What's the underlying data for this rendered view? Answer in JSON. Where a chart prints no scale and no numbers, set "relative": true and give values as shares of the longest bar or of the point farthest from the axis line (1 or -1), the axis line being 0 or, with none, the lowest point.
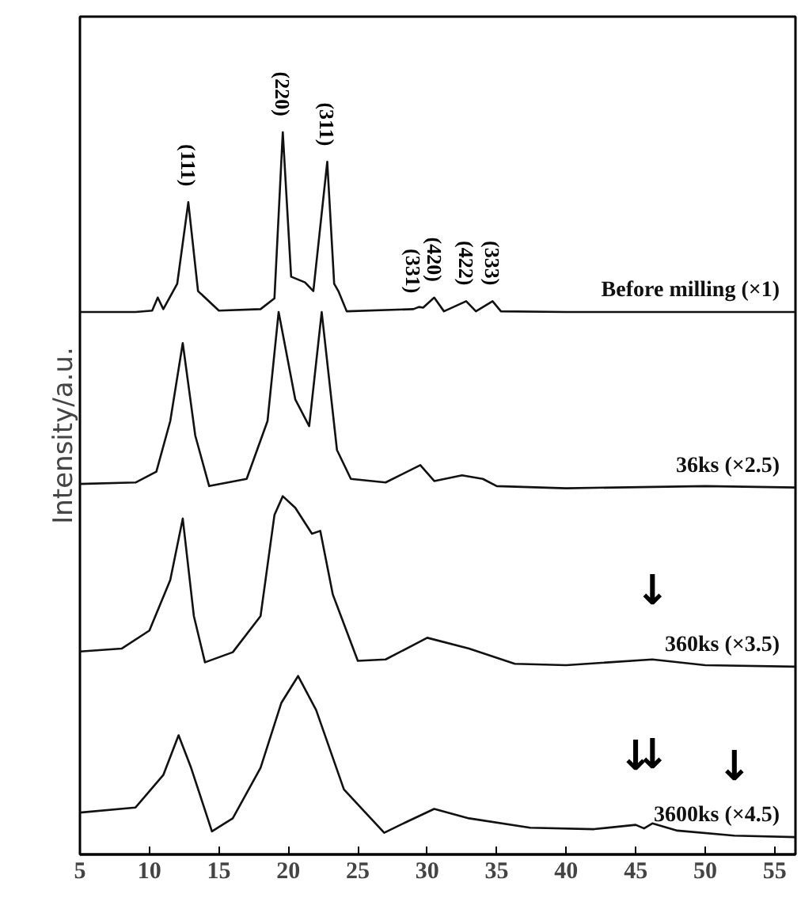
{
  "chart_data": {
    "type": "line",
    "relative": true,
    "ylabel": "Intensity/a.u.",
    "xlim": [
      5,
      56.5
    ],
    "xticks": [
      5,
      10,
      15,
      20,
      25,
      30,
      35,
      40,
      45,
      50,
      55
    ],
    "tick_labels": "x",
    "grid": false,
    "marker": "none",
    "line_style": "solid",
    "series": [
      {
        "name": "Before milling (×1)",
        "color": "#111111",
        "x": [
          5,
          9,
          10.2,
          10.6,
          11,
          12,
          12.8,
          13.5,
          15,
          18,
          19,
          19.6,
          20.2,
          21.2,
          21.8,
          22.8,
          23.3,
          23.6,
          24.2,
          29,
          29.4,
          29.7,
          30.5,
          31.2,
          32.8,
          33.5,
          34.7,
          35.3,
          40,
          56.5
        ],
        "values": [
          0.751,
          0.751,
          0.753,
          0.771,
          0.755,
          0.79,
          0.903,
          0.78,
          0.753,
          0.755,
          0.77,
          1.0,
          0.8,
          0.792,
          0.78,
          0.959,
          0.79,
          0.78,
          0.752,
          0.755,
          0.758,
          0.757,
          0.771,
          0.752,
          0.766,
          0.752,
          0.766,
          0.752,
          0.751,
          0.751
        ]
      },
      {
        "name": "36ks (×2.5)",
        "color": "#111111",
        "x": [
          5,
          9,
          10.5,
          11.5,
          12.4,
          13.3,
          14.3,
          17,
          18.5,
          19.3,
          20.5,
          21.5,
          22.4,
          23.5,
          24.5,
          27,
          29.5,
          30.5,
          32.5,
          34,
          35,
          40,
          50,
          56.5
        ],
        "values": [
          0.513,
          0.515,
          0.53,
          0.6,
          0.708,
          0.58,
          0.51,
          0.52,
          0.6,
          0.751,
          0.63,
          0.593,
          0.751,
          0.56,
          0.52,
          0.515,
          0.539,
          0.517,
          0.525,
          0.52,
          0.51,
          0.507,
          0.51,
          0.508
        ]
      },
      {
        "name": "360ks (×3.5)",
        "color": "#111111",
        "x": [
          5,
          8,
          10,
          11.5,
          12.4,
          13.2,
          14,
          16,
          18,
          19,
          19.6,
          20.5,
          21.7,
          22.3,
          23.2,
          25,
          27,
          30,
          33,
          36.3,
          40,
          46.2,
          50,
          56.5
        ],
        "values": [
          0.281,
          0.285,
          0.31,
          0.38,
          0.465,
          0.33,
          0.266,
          0.28,
          0.33,
          0.47,
          0.496,
          0.48,
          0.444,
          0.448,
          0.36,
          0.268,
          0.27,
          0.3,
          0.285,
          0.264,
          0.262,
          0.27,
          0.262,
          0.26
        ]
      },
      {
        "name": "3600ks (×4.5)",
        "color": "#111111",
        "x": [
          5,
          9,
          11,
          12.1,
          13,
          14.5,
          16,
          18,
          19.5,
          20.7,
          22,
          24,
          26.9,
          28.5,
          30.5,
          33,
          37.4,
          42,
          45,
          45.6,
          46.2,
          48,
          52.1,
          56.5
        ],
        "values": [
          0.058,
          0.065,
          0.11,
          0.165,
          0.12,
          0.032,
          0.05,
          0.12,
          0.21,
          0.247,
          0.2,
          0.09,
          0.03,
          0.045,
          0.063,
          0.05,
          0.037,
          0.035,
          0.041,
          0.036,
          0.043,
          0.033,
          0.026,
          0.024
        ]
      }
    ],
    "annotations": [
      {
        "text": "(111)",
        "x": 12.8,
        "y": 0.903
      },
      {
        "text": "(220)",
        "x": 19.6,
        "y": 1.0
      },
      {
        "text": "(311)",
        "x": 22.8,
        "y": 0.959
      },
      {
        "text": "(331)",
        "x": 29,
        "y": 0.755
      },
      {
        "text": "(420)",
        "x": 30.5,
        "y": 0.771
      },
      {
        "text": "(422)",
        "x": 32.8,
        "y": 0.766
      },
      {
        "text": "(333)",
        "x": 34.7,
        "y": 0.766
      },
      {
        "text": "↓",
        "x": 46.2,
        "y": 0.27
      },
      {
        "text": "↓",
        "x": 45.0,
        "y": 0.041
      },
      {
        "text": "↓",
        "x": 46.2,
        "y": 0.043
      },
      {
        "text": "↓",
        "x": 52.1,
        "y": 0.026
      }
    ]
  }
}
